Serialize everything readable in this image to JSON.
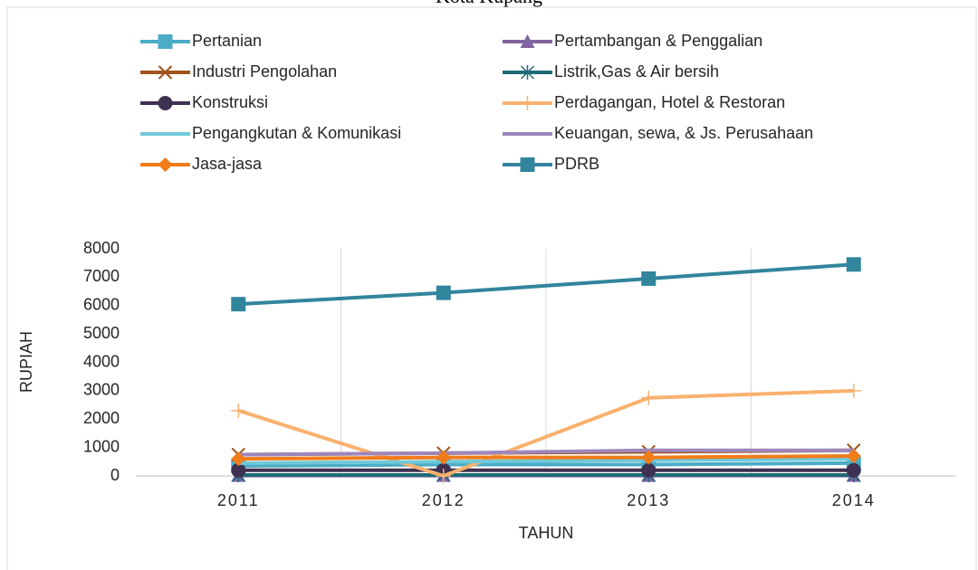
{
  "chart_data": {
    "type": "line",
    "title": "Kota Kupang",
    "xlabel": "TAHUN",
    "ylabel": "RUPIAH",
    "categories": [
      "2011",
      "2012",
      "2013",
      "2014"
    ],
    "ylim": [
      0,
      8000
    ],
    "yticks": [
      0,
      1000,
      2000,
      3000,
      4000,
      5000,
      6000,
      7000,
      8000
    ],
    "grid": "vertical",
    "series": [
      {
        "name": "Pertanian",
        "color": "#4bacc6",
        "marker": "square",
        "values": [
          350,
          400,
          400,
          450
        ]
      },
      {
        "name": "Pertambangan & Penggalian",
        "color": "#8064a2",
        "marker": "triangle",
        "values": [
          10,
          10,
          10,
          10
        ]
      },
      {
        "name": "Industri Pengolahan",
        "color": "#a0521c",
        "marker": "x",
        "values": [
          750,
          800,
          850,
          900
        ]
      },
      {
        "name": "Listrik,Gas & Air bersih",
        "color": "#1f6a78",
        "marker": "star",
        "values": [
          30,
          30,
          30,
          30
        ]
      },
      {
        "name": "Konstruksi",
        "color": "#3f3151",
        "marker": "circle",
        "values": [
          200,
          200,
          200,
          200
        ]
      },
      {
        "name": "Perdagangan, Hotel & Restoran",
        "color": "#f9b16e",
        "marker": "plus",
        "values": [
          2300,
          0,
          2750,
          3000
        ]
      },
      {
        "name": "Pengangkutan & Komunikasi",
        "color": "#70c8d8",
        "marker": "none",
        "values": [
          450,
          500,
          550,
          600
        ]
      },
      {
        "name": "Keuangan, sewa, & Js. Perusahaan",
        "color": "#9e87bc",
        "marker": "none",
        "values": [
          750,
          800,
          900,
          900
        ]
      },
      {
        "name": "Jasa-jasa",
        "color": "#f07c1a",
        "marker": "diamond",
        "values": [
          600,
          650,
          650,
          700
        ]
      },
      {
        "name": "PDRB",
        "color": "#31859c",
        "marker": "square",
        "values": [
          6050,
          6450,
          6950,
          7450
        ]
      }
    ]
  }
}
